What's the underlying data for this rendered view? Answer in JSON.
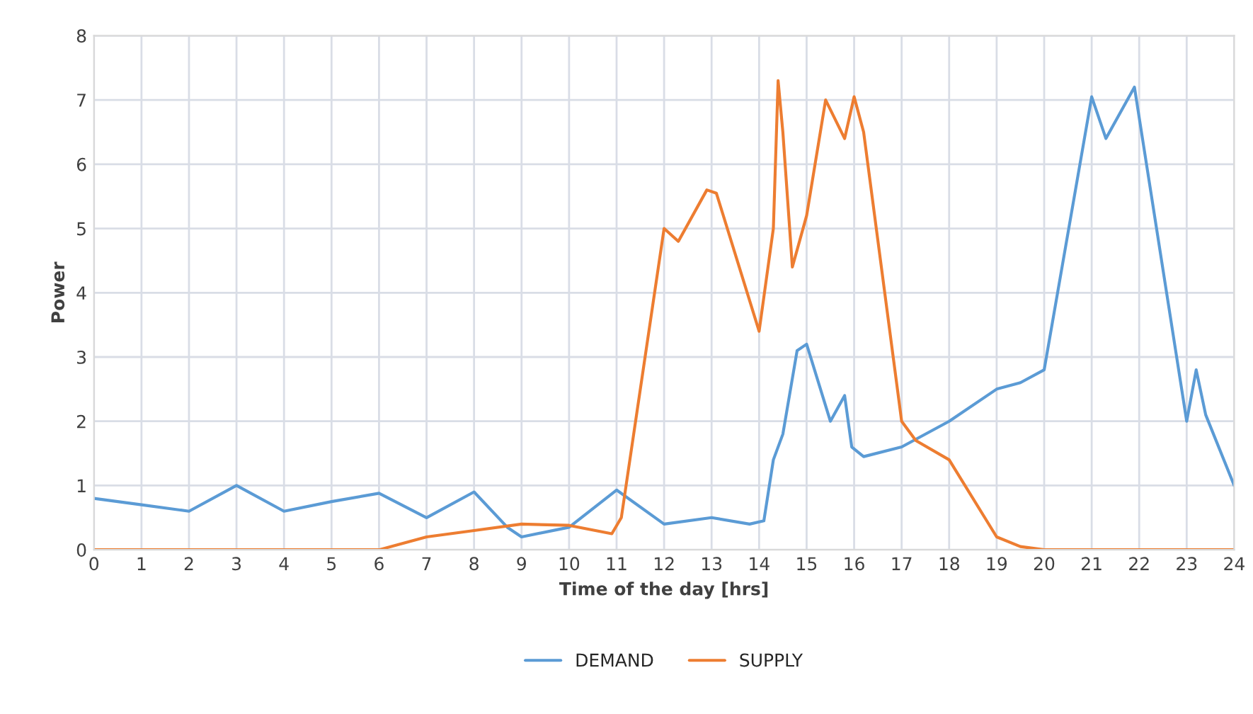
{
  "chart_data": {
    "type": "line",
    "xlabel": "Time of the day [hrs]",
    "ylabel": "Power",
    "xlim": [
      0,
      24
    ],
    "xticks": [
      0,
      1,
      2,
      3,
      4,
      5,
      6,
      7,
      8,
      9,
      10,
      11,
      12,
      13,
      14,
      15,
      16,
      17,
      18,
      19,
      20,
      21,
      22,
      23,
      24
    ],
    "ylim": [
      0,
      8
    ],
    "yticks": [
      0,
      1,
      2,
      3,
      4,
      5,
      6,
      7,
      8
    ],
    "grid": true,
    "legend": "bottom",
    "line_style": "solid",
    "marker": "none",
    "series": [
      {
        "name": "DEMAND",
        "color": "#5b9bd5",
        "x": [
          0,
          1,
          2,
          3,
          4,
          5,
          6,
          7,
          8,
          8.7,
          9,
          10,
          11,
          12,
          13,
          13.8,
          14.1,
          14.3,
          14.5,
          14.8,
          15.0,
          15.5,
          15.8,
          15.95,
          16.2,
          17,
          18,
          19,
          19.5,
          20,
          21,
          21.3,
          21.9,
          23,
          23.2,
          23.4,
          24
        ],
        "values": [
          0.8,
          0.7,
          0.6,
          1.0,
          0.6,
          0.75,
          0.88,
          0.5,
          0.9,
          0.35,
          0.2,
          0.35,
          0.93,
          0.4,
          0.5,
          0.4,
          0.45,
          1.4,
          1.8,
          3.1,
          3.2,
          2.0,
          2.4,
          1.6,
          1.45,
          1.6,
          2.0,
          2.5,
          2.6,
          2.8,
          7.05,
          6.4,
          7.2,
          2.0,
          2.8,
          2.1,
          1.0
        ]
      },
      {
        "name": "SUPPLY",
        "color": "#ed7d31",
        "x": [
          0,
          1,
          2,
          3,
          4,
          5,
          5.5,
          6,
          7,
          8,
          9,
          10,
          10.9,
          11.1,
          12,
          12.3,
          12.9,
          13.1,
          14.0,
          14.3,
          14.4,
          14.5,
          14.7,
          15.0,
          15.4,
          15.8,
          16.0,
          16.2,
          17,
          17.3,
          18,
          19,
          19.5,
          20,
          21,
          22,
          23,
          24
        ],
        "values": [
          0,
          0,
          0,
          0,
          0,
          0,
          0,
          0,
          0.2,
          0.3,
          0.4,
          0.38,
          0.25,
          0.5,
          5.0,
          4.8,
          5.6,
          5.55,
          3.4,
          5.0,
          7.3,
          6.5,
          4.4,
          5.2,
          7.0,
          6.4,
          7.05,
          6.5,
          2.0,
          1.7,
          1.4,
          0.2,
          0.05,
          0,
          0,
          0,
          0,
          0
        ]
      }
    ]
  }
}
